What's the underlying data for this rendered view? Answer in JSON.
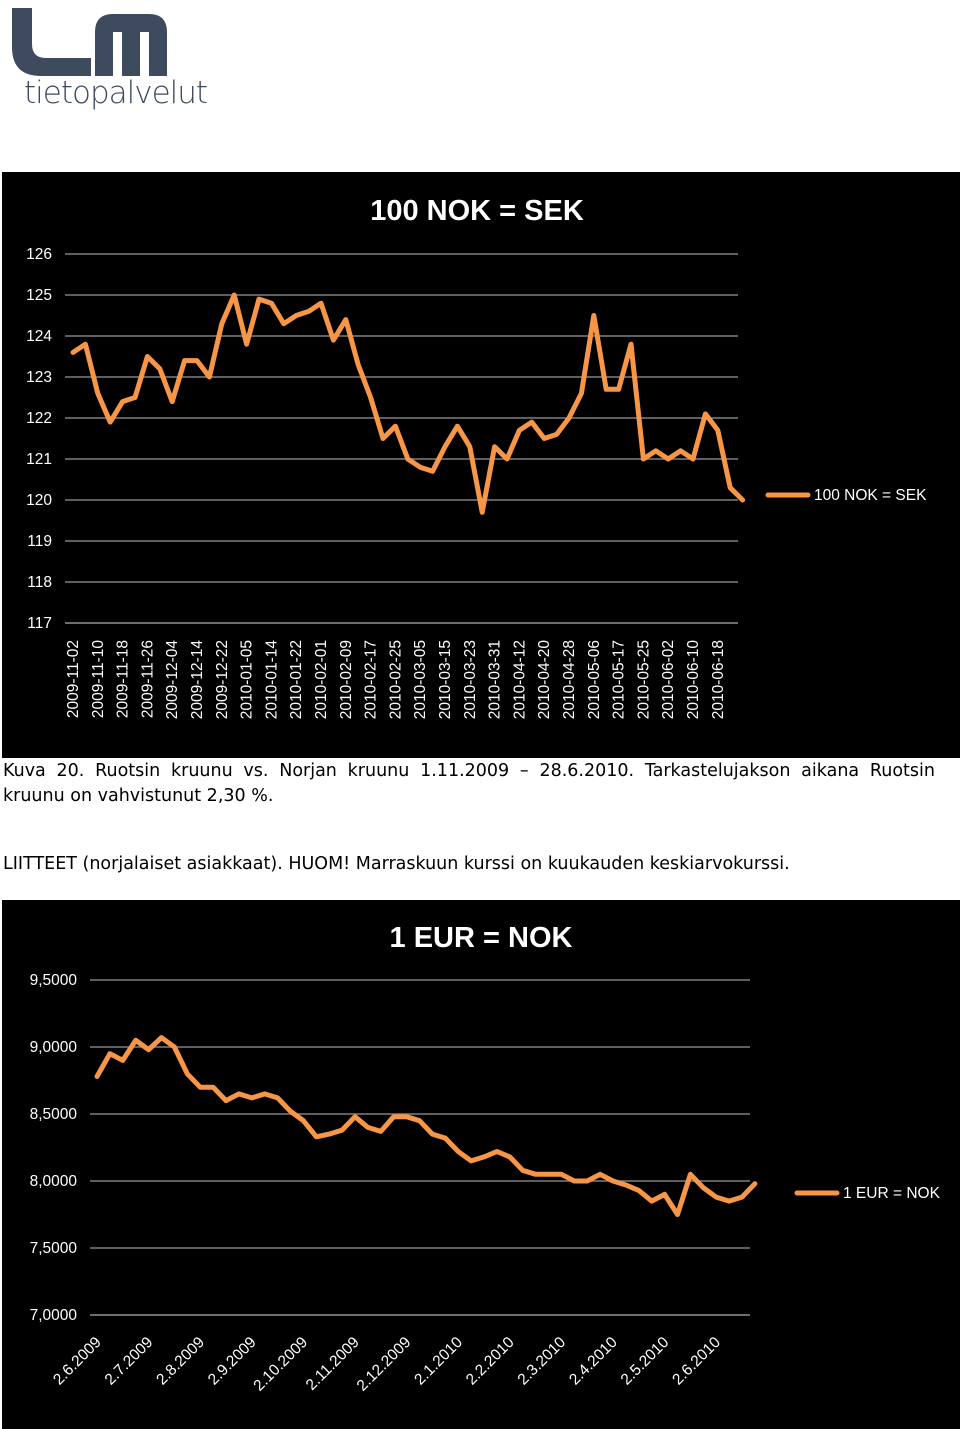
{
  "logo_text": "tietopalvelut",
  "caption": "Kuva 20. Ruotsin kruunu vs. Norjan kruunu 1.11.2009 – 28.6.2010. Tarkastelujakson aikana Ruotsin kruunu on vahvistunut 2,30 %.",
  "note": "LIITTEET (norjalaiset asiakkaat). HUOM! Marraskuun kurssi on kuukauden keskiarvokurssi.",
  "chart_data": [
    {
      "type": "line",
      "title": "100 NOK = SEK",
      "categories": [
        "2009-11-02",
        null,
        "2009-11-10",
        null,
        "2009-11-18",
        null,
        "2009-11-26",
        null,
        "2009-12-04",
        null,
        "2009-12-14",
        null,
        "2009-12-22",
        null,
        "2010-01-05",
        null,
        "2010-01-14",
        null,
        "2010-01-22",
        null,
        "2010-02-01",
        null,
        "2010-02-09",
        null,
        "2010-02-17",
        null,
        "2010-02-25",
        null,
        "2010-03-05",
        null,
        "2010-03-15",
        null,
        "2010-03-23",
        null,
        "2010-03-31",
        null,
        "2010-04-12",
        null,
        "2010-04-20",
        null,
        "2010-04-28",
        null,
        "2010-05-06",
        null,
        "2010-05-17",
        null,
        "2010-05-25",
        null,
        "2010-06-02",
        null,
        "2010-06-10",
        null,
        "2010-06-18",
        null,
        null
      ],
      "series": [
        {
          "name": "100 NOK = SEK",
          "color": "#f79646",
          "values": [
            123.6,
            123.8,
            122.6,
            121.9,
            122.4,
            122.5,
            123.5,
            123.2,
            122.4,
            123.4,
            123.4,
            123.0,
            124.3,
            125.0,
            123.8,
            124.9,
            124.8,
            124.3,
            124.5,
            124.6,
            124.8,
            123.9,
            124.4,
            123.3,
            122.5,
            121.5,
            121.8,
            121.0,
            120.8,
            120.7,
            121.3,
            121.8,
            121.3,
            119.7,
            121.3,
            121.0,
            121.7,
            121.9,
            121.5,
            121.6,
            122.0,
            122.6,
            124.5,
            122.7,
            122.7,
            123.8,
            121.0,
            121.2,
            121.0,
            121.2,
            121.0,
            122.1,
            121.7,
            120.3,
            120.0
          ]
        }
      ],
      "ylim": [
        117,
        126
      ],
      "yticks": [
        117,
        118,
        119,
        120,
        121,
        122,
        123,
        124,
        125,
        126
      ],
      "grid": true,
      "legend": "right"
    },
    {
      "type": "line",
      "title": "1 EUR = NOK",
      "categories": [
        "2.6.2009",
        null,
        null,
        null,
        "2.7.2009",
        null,
        null,
        null,
        "2.8.2009",
        null,
        null,
        null,
        "2.9.2009",
        null,
        null,
        null,
        "2.10.2009",
        null,
        null,
        null,
        "2.11.2009",
        null,
        null,
        null,
        "2.12.2009",
        null,
        null,
        null,
        "2.1.2010",
        null,
        null,
        null,
        "2.2.2010",
        null,
        null,
        null,
        "2.3.2010",
        null,
        null,
        null,
        "2.4.2010",
        null,
        null,
        null,
        "2.5.2010",
        null,
        null,
        null,
        "2.6.2010",
        null,
        null,
        null
      ],
      "series": [
        {
          "name": "1 EUR = NOK",
          "color": "#f79646",
          "values": [
            8.78,
            8.95,
            8.9,
            9.05,
            8.98,
            9.07,
            9.0,
            8.8,
            8.7,
            8.7,
            8.6,
            8.65,
            8.62,
            8.65,
            8.62,
            8.52,
            8.45,
            8.33,
            8.35,
            8.38,
            8.48,
            8.4,
            8.37,
            8.48,
            8.48,
            8.45,
            8.35,
            8.32,
            8.22,
            8.15,
            8.18,
            8.22,
            8.18,
            8.08,
            8.05,
            8.05,
            8.05,
            8.0,
            8.0,
            8.05,
            8.0,
            7.97,
            7.93,
            7.85,
            7.9,
            7.75,
            8.05,
            7.95,
            7.88,
            7.85,
            7.88,
            7.98
          ]
        }
      ],
      "ylim": [
        7,
        9.5
      ],
      "yticks": [
        {
          "value": 7,
          "label": "7,0000"
        },
        {
          "value": 7.5,
          "label": "7,5000"
        },
        {
          "value": 8,
          "label": "8,0000"
        },
        {
          "value": 8.5,
          "label": "8,5000"
        },
        {
          "value": 9,
          "label": "9,0000"
        },
        {
          "value": 9.5,
          "label": "9,5000"
        }
      ],
      "grid": true,
      "legend": "right"
    }
  ]
}
